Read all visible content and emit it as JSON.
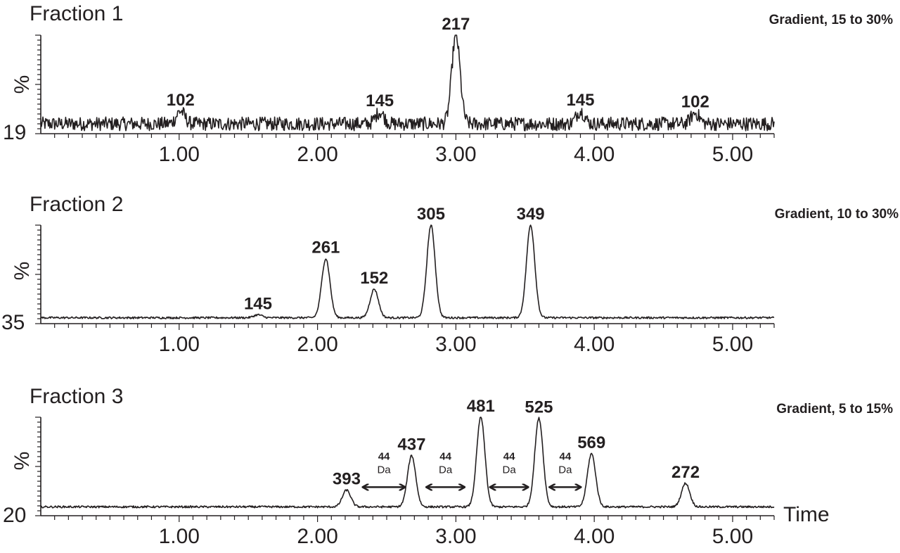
{
  "colors": {
    "ink": "#231f20",
    "background": "#ffffff"
  },
  "chart_data": [
    {
      "type": "line",
      "title": "Fraction 1",
      "subtitle": "Gradient, 15 to 30%",
      "ylabel": "%",
      "y_min_label": "19",
      "xlim": [
        0,
        5.3
      ],
      "ylim": [
        0,
        100
      ],
      "x_ticks": [
        "1.00",
        "2.00",
        "3.00",
        "4.00",
        "5.00"
      ],
      "noise": 7,
      "baseline": 10,
      "peaks": [
        {
          "x": 1.01,
          "y": 23,
          "label": "102"
        },
        {
          "x": 2.45,
          "y": 22,
          "label": "145"
        },
        {
          "x": 3.0,
          "y": 100,
          "label": "217"
        },
        {
          "x": 3.9,
          "y": 23,
          "label": "145"
        },
        {
          "x": 4.73,
          "y": 21,
          "label": "102"
        }
      ]
    },
    {
      "type": "line",
      "title": "Fraction 2",
      "subtitle": "Gradient, 10 to 30%",
      "ylabel": "%",
      "y_min_label": "35",
      "xlim": [
        0,
        5.3
      ],
      "ylim": [
        0,
        100
      ],
      "x_ticks": [
        "1.00",
        "2.00",
        "3.00",
        "4.00",
        "5.00"
      ],
      "noise": 1,
      "baseline": 6,
      "peaks": [
        {
          "x": 1.57,
          "y": 9,
          "label": "145"
        },
        {
          "x": 2.06,
          "y": 66,
          "label": "261"
        },
        {
          "x": 2.41,
          "y": 35,
          "label": "152"
        },
        {
          "x": 2.82,
          "y": 100,
          "label": "305"
        },
        {
          "x": 3.54,
          "y": 100,
          "label": "349"
        }
      ]
    },
    {
      "type": "line",
      "title": "Fraction 3",
      "subtitle": "Gradient, 5 to 15%",
      "ylabel": "%",
      "y_min_label": "20",
      "x_axis_title": "Time",
      "xlim": [
        0,
        5.3
      ],
      "ylim": [
        0,
        100
      ],
      "x_ticks": [
        "1.00",
        "2.00",
        "3.00",
        "4.00",
        "5.00"
      ],
      "noise": 1,
      "baseline": 9,
      "peaks": [
        {
          "x": 2.21,
          "y": 26,
          "label": "393"
        },
        {
          "x": 2.68,
          "y": 61,
          "label": "437"
        },
        {
          "x": 3.18,
          "y": 100,
          "label": "481"
        },
        {
          "x": 3.6,
          "y": 99,
          "label": "525"
        },
        {
          "x": 3.98,
          "y": 63,
          "label": "569"
        },
        {
          "x": 4.66,
          "y": 33,
          "label": "272"
        }
      ],
      "mass_differences": [
        {
          "from": 2.33,
          "to": 2.63,
          "value": "44",
          "unit": "Da"
        },
        {
          "from": 2.79,
          "to": 3.06,
          "value": "44",
          "unit": "Da"
        },
        {
          "from": 3.25,
          "to": 3.52,
          "value": "44",
          "unit": "Da"
        },
        {
          "from": 3.68,
          "to": 3.9,
          "value": "44",
          "unit": "Da"
        }
      ]
    }
  ]
}
